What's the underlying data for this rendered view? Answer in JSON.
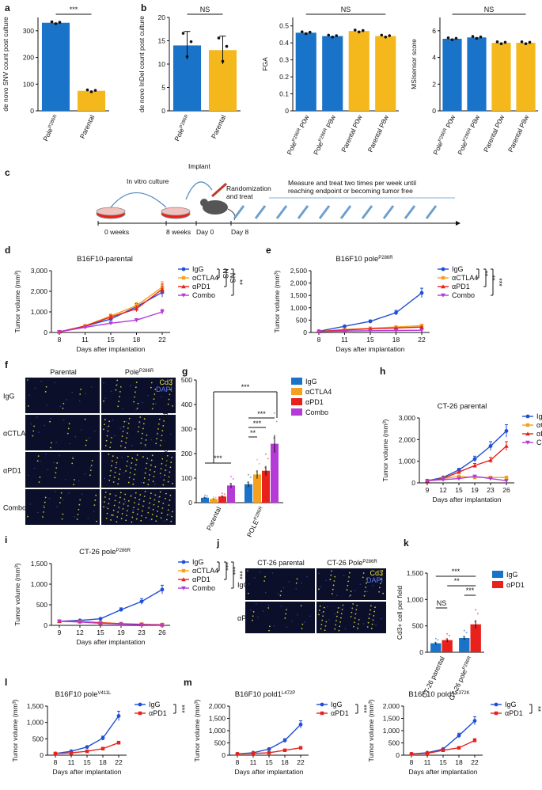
{
  "colors": {
    "blue": "#1f4fd6",
    "orange": "#f5a11f",
    "red": "#e8211c",
    "purple": "#b43bd6",
    "barBlue": "#1973c8",
    "barYellow": "#f4b81c",
    "marker": "#000000"
  },
  "chart_data": [
    {
      "id": "a",
      "label": "a",
      "type": "bar",
      "categories": [
        "Pole^P286R",
        "Parental"
      ],
      "values": [
        330,
        75
      ],
      "ylabel": "de novo SNV count post culture",
      "ylim": [
        0,
        350
      ],
      "yticks": [
        0,
        100,
        200,
        300
      ],
      "colors": [
        "barBlue",
        "barYellow"
      ],
      "sig": "***"
    },
    {
      "id": "b1",
      "label": "b",
      "type": "bar",
      "categories": [
        "Pole^P286R",
        "Parental"
      ],
      "values": [
        14,
        13
      ],
      "errors": [
        3,
        3
      ],
      "ylabel": "de novo InDel count post culture",
      "ylim": [
        0,
        20
      ],
      "yticks": [
        0,
        5,
        10,
        15,
        20
      ],
      "colors": [
        "barBlue",
        "barYellow"
      ],
      "sig": "NS"
    },
    {
      "id": "b2",
      "label": "",
      "type": "bar",
      "categories": [
        "Pole^P286R P0w",
        "Pole^P286R P8w",
        "Parental P0w",
        "Parental P8w"
      ],
      "values": [
        0.46,
        0.44,
        0.47,
        0.44
      ],
      "ylabel": "FGA",
      "ylim": [
        0,
        0.55
      ],
      "yticks": [
        0,
        0.1,
        0.2,
        0.3,
        0.4,
        0.5
      ],
      "colors": [
        "barBlue",
        "barBlue",
        "barYellow",
        "barYellow"
      ],
      "sig": "NS"
    },
    {
      "id": "b3",
      "label": "",
      "type": "bar",
      "categories": [
        "Pole^P286R P0w",
        "Pole^P286R P8w",
        "Parental P0w",
        "Parental P8w"
      ],
      "values": [
        5.4,
        5.5,
        5.1,
        5.1
      ],
      "ylabel": "MSIsensor score",
      "ylim": [
        0,
        7
      ],
      "yticks": [
        0,
        2,
        4,
        6
      ],
      "colors": [
        "barBlue",
        "barBlue",
        "barYellow",
        "barYellow"
      ],
      "sig": "NS"
    },
    {
      "id": "d",
      "label": "d",
      "type": "line",
      "title": "B16F10-parental",
      "x": [
        8,
        11,
        15,
        18,
        22
      ],
      "xlabel": "Days after implantation",
      "ylabel": "Tumor volume (mm³)",
      "ylim": [
        0,
        3000
      ],
      "yticks": [
        0,
        1000,
        2000,
        3000
      ],
      "ytickLabels": [
        "0",
        "1,000",
        "2,000",
        "3,000"
      ],
      "series": [
        {
          "name": "IgG",
          "color": "blue",
          "values": [
            30,
            300,
            650,
            1250,
            1950
          ]
        },
        {
          "name": "αCTLA4",
          "color": "orange",
          "values": [
            30,
            320,
            800,
            1300,
            2200
          ]
        },
        {
          "name": "αPD1",
          "color": "red",
          "values": [
            30,
            310,
            750,
            1150,
            2100
          ]
        },
        {
          "name": "Combo",
          "color": "purple",
          "values": [
            30,
            250,
            450,
            600,
            1000
          ]
        }
      ],
      "brackets": [
        {
          "label": "NS",
          "span": [
            0,
            1
          ]
        },
        {
          "label": "NS",
          "span": [
            0,
            2
          ]
        },
        {
          "label": "**",
          "span": [
            0,
            3
          ]
        }
      ]
    },
    {
      "id": "e",
      "label": "e",
      "type": "line",
      "title": "B16F10 pole^P286R",
      "x": [
        8,
        11,
        15,
        18,
        22
      ],
      "xlabel": "Days after implantation",
      "ylabel": "Tumor volume (mm³)",
      "ylim": [
        0,
        2500
      ],
      "yticks": [
        0,
        500,
        1000,
        1500,
        2000,
        2500
      ],
      "ytickLabels": [
        "0",
        "500",
        "1,000",
        "1,500",
        "2,000",
        "2,500"
      ],
      "series": [
        {
          "name": "IgG",
          "color": "blue",
          "values": [
            50,
            250,
            450,
            800,
            1600
          ]
        },
        {
          "name": "αCTLA4",
          "color": "orange",
          "values": [
            40,
            120,
            170,
            220,
            280
          ]
        },
        {
          "name": "αPD1",
          "color": "red",
          "values": [
            40,
            100,
            150,
            180,
            220
          ]
        },
        {
          "name": "Combo",
          "color": "purple",
          "values": [
            40,
            60,
            70,
            80,
            90
          ]
        }
      ],
      "brackets": [
        {
          "label": "**",
          "span": [
            0,
            1
          ]
        },
        {
          "label": "**",
          "span": [
            0,
            2
          ]
        },
        {
          "label": "***",
          "span": [
            0,
            3
          ]
        }
      ]
    },
    {
      "id": "g",
      "label": "g",
      "type": "bar",
      "groups": [
        "Parental",
        "POLE^P286R"
      ],
      "seriesNames": [
        "IgG",
        "αCTLA4",
        "αPD1",
        "Combo"
      ],
      "values": [
        [
          20,
          15,
          25,
          70
        ],
        [
          75,
          115,
          130,
          240
        ]
      ],
      "ylabel": "Cd3⁺ cells per field",
      "ylim": [
        0,
        500
      ],
      "yticks": [
        0,
        100,
        200,
        300,
        400,
        500
      ],
      "sig": [
        "***",
        "***",
        "***",
        "**",
        "***"
      ]
    },
    {
      "id": "h",
      "label": "h",
      "type": "line",
      "title": "CT-26 parental",
      "x": [
        9,
        12,
        15,
        19,
        23,
        26
      ],
      "xlabel": "Days after implantation",
      "ylabel": "Tumor volume (mm³)",
      "ylim": [
        0,
        3000
      ],
      "yticks": [
        0,
        1000,
        2000,
        3000
      ],
      "ytickLabels": [
        "0",
        "1,000",
        "2,000",
        "3,000"
      ],
      "series": [
        {
          "name": "IgG",
          "color": "blue",
          "values": [
            100,
            250,
            600,
            1100,
            1700,
            2400
          ]
        },
        {
          "name": "αCTLA4",
          "color": "orange",
          "values": [
            100,
            200,
            300,
            250,
            250,
            250
          ]
        },
        {
          "name": "αPD1",
          "color": "red",
          "values": [
            100,
            200,
            500,
            800,
            1050,
            1700
          ]
        },
        {
          "name": "Combo",
          "color": "purple",
          "values": [
            100,
            150,
            200,
            300,
            200,
            100
          ]
        }
      ],
      "brackets": [
        {
          "label": "***",
          "span": [
            0,
            1
          ]
        },
        {
          "label": "*",
          "span": [
            0,
            2
          ]
        },
        {
          "label": "***",
          "span": [
            0,
            3
          ]
        }
      ]
    },
    {
      "id": "i",
      "label": "i",
      "type": "line",
      "title": "CT-26 pole^P286R",
      "x": [
        9,
        12,
        15,
        19,
        23,
        26
      ],
      "xlabel": "Days after implantation",
      "ylabel": "Tumor volume (mm³)",
      "ylim": [
        0,
        1500
      ],
      "yticks": [
        0,
        500,
        1000,
        1500
      ],
      "ytickLabels": [
        "0",
        "500",
        "1,000",
        "1,500"
      ],
      "series": [
        {
          "name": "IgG",
          "color": "blue",
          "values": [
            100,
            120,
            160,
            380,
            580,
            870
          ]
        },
        {
          "name": "αCTLA4",
          "color": "orange",
          "values": [
            100,
            90,
            70,
            40,
            30,
            20
          ]
        },
        {
          "name": "αPD1",
          "color": "red",
          "values": [
            100,
            90,
            60,
            40,
            20,
            10
          ]
        },
        {
          "name": "Combo",
          "color": "purple",
          "values": [
            100,
            80,
            50,
            30,
            20,
            10
          ]
        }
      ],
      "brackets": [
        {
          "label": "***",
          "span": [
            0,
            1
          ]
        },
        {
          "label": "***",
          "span": [
            0,
            2
          ]
        },
        {
          "label": "***",
          "span": [
            0,
            3
          ]
        }
      ]
    },
    {
      "id": "k",
      "label": "k",
      "type": "bar",
      "groups": [
        "CT-26 parental",
        "CT-26 pole^P286R"
      ],
      "seriesNames": [
        "IgG",
        "αPD1"
      ],
      "values": [
        [
          170,
          230
        ],
        [
          270,
          530
        ]
      ],
      "ylabel": "Cd3+ cell per field",
      "ylim": [
        0,
        1500
      ],
      "yticks": [
        0,
        500,
        1000,
        1500
      ],
      "ytickLabels": [
        "0",
        "500",
        "1,000",
        "1,500"
      ],
      "sig": [
        "NS",
        "**",
        "***",
        "***"
      ]
    },
    {
      "id": "l",
      "label": "l",
      "type": "line",
      "title": "B16F10 pole^V411L",
      "x": [
        8,
        11,
        15,
        18,
        22
      ],
      "xlabel": "Days after implantation",
      "ylabel": "Tumor volume (mm³)",
      "ylim": [
        0,
        1500
      ],
      "yticks": [
        0,
        500,
        1000,
        1500
      ],
      "ytickLabels": [
        "0",
        "500",
        "1,000",
        "1,500"
      ],
      "series": [
        {
          "name": "IgG",
          "color": "blue",
          "values": [
            50,
            120,
            250,
            520,
            1200
          ]
        },
        {
          "name": "αPD1",
          "color": "red",
          "values": [
            50,
            70,
            120,
            200,
            380
          ]
        }
      ],
      "brackets": [
        {
          "label": "***",
          "span": [
            0,
            1
          ]
        }
      ]
    },
    {
      "id": "m1",
      "label": "m",
      "type": "line",
      "title": "B16F10 pold1^L472P",
      "x": [
        8,
        11,
        15,
        18,
        22
      ],
      "xlabel": "Days after implantation",
      "ylabel": "Tumor volume (mm³)",
      "ylim": [
        0,
        2000
      ],
      "yticks": [
        0,
        500,
        1000,
        1500,
        2000
      ],
      "ytickLabels": [
        "0",
        "500",
        "1,000",
        "1,500",
        "2,000"
      ],
      "series": [
        {
          "name": "IgG",
          "color": "blue",
          "values": [
            50,
            100,
            250,
            600,
            1250
          ]
        },
        {
          "name": "αPD1",
          "color": "red",
          "values": [
            50,
            70,
            100,
            200,
            300
          ]
        }
      ],
      "brackets": [
        {
          "label": "***",
          "span": [
            0,
            1
          ]
        }
      ]
    },
    {
      "id": "m2",
      "label": "",
      "type": "line",
      "title": "B16F10 pold1^E372K",
      "x": [
        8,
        11,
        15,
        18,
        22
      ],
      "xlabel": "Days after implantation",
      "ylabel": "Tumor volume (mm³)",
      "ylim": [
        0,
        2000
      ],
      "yticks": [
        0,
        500,
        1000,
        1500,
        2000
      ],
      "ytickLabels": [
        "0",
        "500",
        "1,000",
        "1,500",
        "2,000"
      ],
      "series": [
        {
          "name": "IgG",
          "color": "blue",
          "values": [
            50,
            100,
            250,
            800,
            1400
          ]
        },
        {
          "name": "αPD1",
          "color": "red",
          "values": [
            50,
            70,
            200,
            300,
            600
          ]
        }
      ],
      "brackets": [
        {
          "label": "**",
          "span": [
            0,
            1
          ]
        }
      ]
    }
  ],
  "schematic": {
    "label": "c",
    "invitro": "In vitro culture",
    "implant": "Implant",
    "rand1": "Randomization",
    "rand2": "and treat",
    "measure1": "Measure and treat two times per week until",
    "measure2": "reaching endpoint or becoming  tumor free",
    "t0": "0 weeks",
    "t8": "8 weeks",
    "day0": "Day 0",
    "day8": "Day 8"
  },
  "micro_f": {
    "label": "f",
    "cols": [
      "Parental",
      "Pole^P286R"
    ],
    "rows": [
      "IgG",
      "αCTLA4",
      "αPD1",
      "Combo"
    ],
    "legend": [
      "Cd3",
      "DAPI"
    ]
  },
  "micro_j": {
    "label": "j",
    "cols": [
      "CT-26 parental",
      "CT-26 Pole^P286R"
    ],
    "rows": [
      "IgG",
      "αPD1"
    ],
    "legend": [
      "Cd3",
      "DAPI"
    ]
  }
}
